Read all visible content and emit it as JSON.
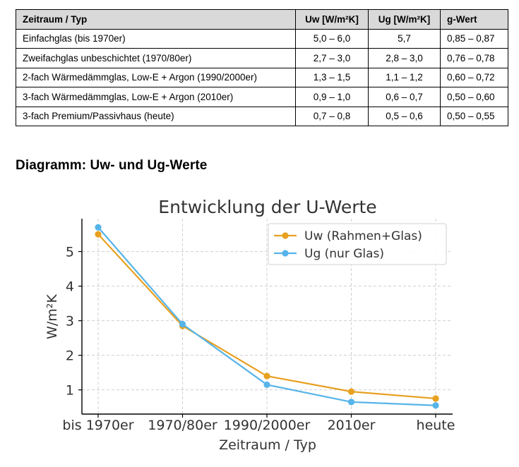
{
  "table": {
    "headers": [
      "Zeitraum / Typ",
      "Uw [W/m²K]",
      "Ug [W/m²K]",
      "g-Wert"
    ],
    "rows": [
      [
        "Einfachglas (bis 1970er)",
        "5,0 – 6,0",
        "5,7",
        "0,85 – 0,87"
      ],
      [
        "Zweifachglas unbeschichtet (1970/80er)",
        "2,7 – 3,0",
        "2,8 – 3,0",
        "0,76 – 0,78"
      ],
      [
        "2-fach Wärmedämmglas, Low-E + Argon (1990/2000er)",
        "1,3 – 1,5",
        "1,1 – 1,2",
        "0,60 – 0,72"
      ],
      [
        "3-fach Wärmedämmglas, Low-E + Argon (2010er)",
        "0,9 – 1,0",
        "0,6 – 0,7",
        "0,50 – 0,60"
      ],
      [
        "3-fach Premium/Passivhaus (heute)",
        "0,7 – 0,8",
        "0,5 – 0,6",
        "0,50 – 0,55"
      ]
    ]
  },
  "section_heading": "Diagramm: Uw- und Ug-Werte",
  "chart_data": {
    "type": "line",
    "title": "Entwicklung der U-Werte",
    "xlabel": "Zeitraum / Typ",
    "ylabel": "W/m²K",
    "categories": [
      "bis 1970er",
      "1970/80er",
      "1990/2000er",
      "2010er",
      "heute"
    ],
    "yticks": [
      1,
      2,
      3,
      4,
      5
    ],
    "ylim": [
      0.3,
      5.95
    ],
    "grid": true,
    "legend_position": "top-right",
    "series": [
      {
        "name": "Uw (Rahmen+Glas)",
        "color": "#e8a020",
        "values": [
          5.5,
          2.85,
          1.4,
          0.95,
          0.75
        ]
      },
      {
        "name": "Ug (nur Glas)",
        "color": "#56b4e9",
        "values": [
          5.7,
          2.9,
          1.15,
          0.65,
          0.55
        ]
      }
    ]
  }
}
